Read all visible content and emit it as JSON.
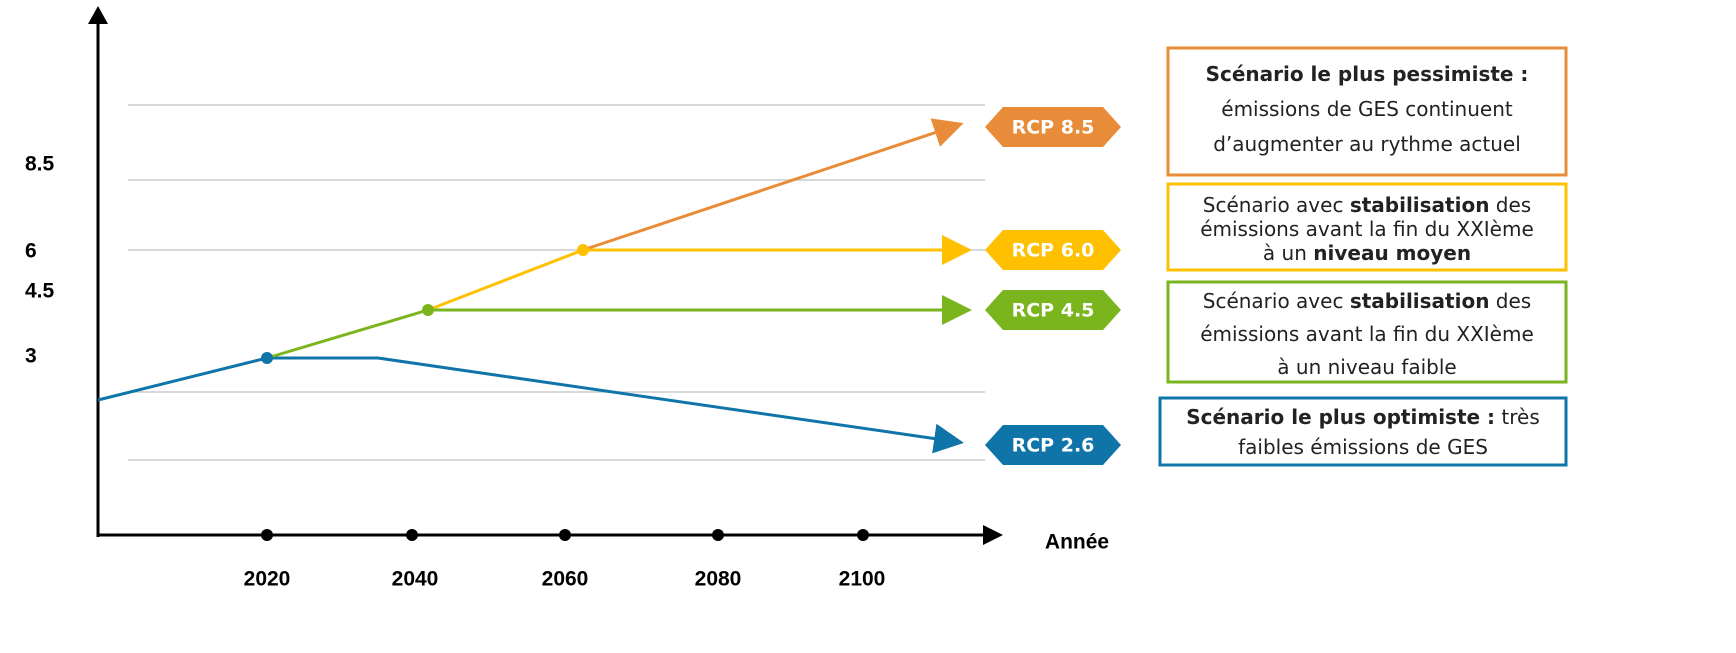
{
  "y_labels": [
    "8.5",
    "6",
    "4.5",
    "3"
  ],
  "x_labels": [
    "2020",
    "2040",
    "2060",
    "2080",
    "2100"
  ],
  "x_axis_label": "Année",
  "tags": [
    {
      "label": "RCP 8.5",
      "color": "#e98c3a"
    },
    {
      "label": "RCP 6.0",
      "color": "#ffc000"
    },
    {
      "label": "RCP 4.5",
      "color": "#7ab51d"
    },
    {
      "label": "RCP 2.6",
      "color": "#0f75a8"
    }
  ],
  "boxes": [
    {
      "color": "#e98c3a",
      "lines": [
        [
          {
            "text": "Scénario le plus pessimiste :",
            "bold": true
          }
        ],
        [
          {
            "text": "émissions de GES continuent"
          }
        ],
        [
          {
            "text": "d’augmenter au rythme actuel"
          }
        ]
      ]
    },
    {
      "color": "#ffc000",
      "lines": [
        [
          {
            "text": "Scénario avec "
          },
          {
            "text": "stabilisation",
            "bold": true
          },
          {
            "text": " des"
          }
        ],
        [
          {
            "text": "émissions avant la fin du XXIème"
          }
        ],
        [
          {
            "text": "à un "
          },
          {
            "text": "niveau moyen",
            "bold": true
          }
        ]
      ]
    },
    {
      "color": "#7ab51d",
      "lines": [
        [
          {
            "text": "Scénario avec "
          },
          {
            "text": "stabilisation",
            "bold": true
          },
          {
            "text": " des"
          }
        ],
        [
          {
            "text": "émissions avant la fin du XXIème"
          }
        ],
        [
          {
            "text": "à un niveau faible"
          }
        ]
      ]
    },
    {
      "color": "#0f75a8",
      "lines": [
        [
          {
            "text": "Scénario le plus optimiste :",
            "bold": true
          },
          {
            "text": " très"
          }
        ],
        [
          {
            "text": "faibles émissions de GES"
          }
        ]
      ]
    }
  ]
}
